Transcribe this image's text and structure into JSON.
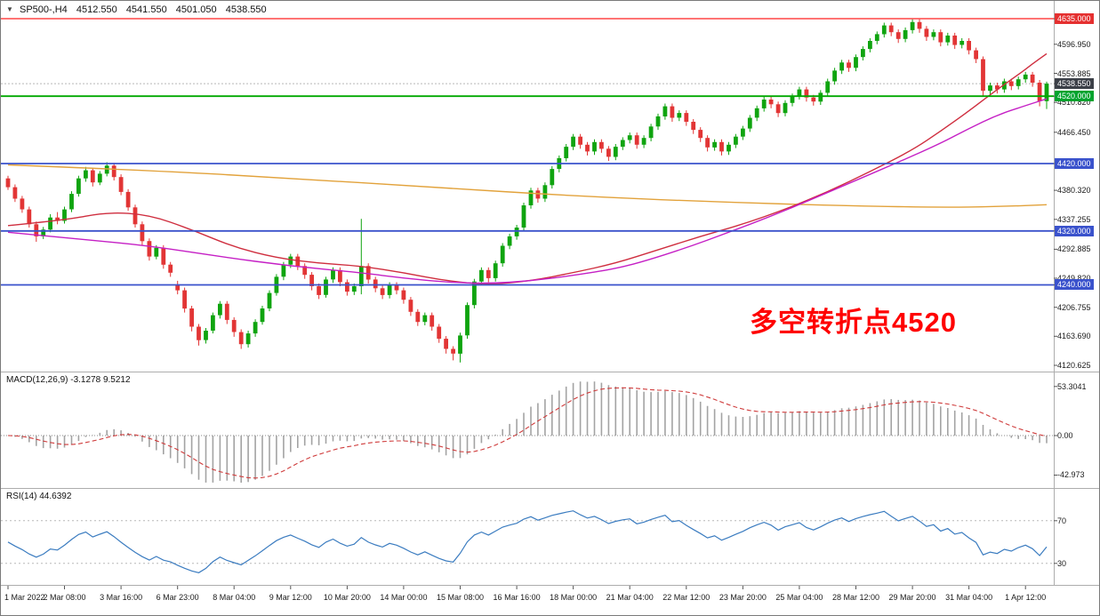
{
  "window": {
    "marker": "▼",
    "symbol": "SP500-,H4",
    "open": "4512.550",
    "high": "4541.550",
    "low": "4501.050",
    "close": "4538.550"
  },
  "annotation": {
    "text": "多空转折点4520",
    "color": "#ff0000"
  },
  "chart_data": {
    "type": "candlestick",
    "title": "SP500-,H4",
    "timeframe": "H4",
    "ylim": [
      4120.625,
      4635.0
    ],
    "label_every": 8,
    "time_labels": [
      "1 Mar 2022",
      "2 Mar 08:00",
      "3 Mar 16:00",
      "6 Mar 23:00",
      "8 Mar 04:00",
      "9 Mar 12:00",
      "10 Mar 20:00",
      "14 Mar 00:00",
      "15 Mar 08:00",
      "16 Mar 16:00",
      "18 Mar 00:00",
      "21 Mar 04:00",
      "22 Mar 12:00",
      "23 Mar 20:00",
      "25 Mar 04:00",
      "28 Mar 12:00",
      "29 Mar 20:00",
      "31 Mar 04:00",
      "1 Apr 12:00"
    ],
    "candle_colors": {
      "up": "#0fa40f",
      "down": "#e23535"
    },
    "ohlc": [
      [
        4398,
        4402,
        4381,
        4385
      ],
      [
        4385,
        4389,
        4363,
        4368
      ],
      [
        4368,
        4372,
        4347,
        4352
      ],
      [
        4352,
        4356,
        4325,
        4330
      ],
      [
        4330,
        4334,
        4304,
        4312
      ],
      [
        4312,
        4326,
        4308,
        4322
      ],
      [
        4322,
        4345,
        4318,
        4340
      ],
      [
        4340,
        4348,
        4330,
        4335
      ],
      [
        4335,
        4356,
        4331,
        4352
      ],
      [
        4352,
        4379,
        4348,
        4375
      ],
      [
        4375,
        4402,
        4371,
        4398
      ],
      [
        4398,
        4415,
        4393,
        4410
      ],
      [
        4410,
        4414,
        4386,
        4392
      ],
      [
        4392,
        4409,
        4388,
        4405
      ],
      [
        4405,
        4422,
        4401,
        4417
      ],
      [
        4417,
        4421,
        4395,
        4400
      ],
      [
        4400,
        4404,
        4373,
        4378
      ],
      [
        4378,
        4382,
        4350,
        4355
      ],
      [
        4355,
        4359,
        4325,
        4330
      ],
      [
        4330,
        4334,
        4299,
        4305
      ],
      [
        4305,
        4309,
        4276,
        4282
      ],
      [
        4282,
        4299,
        4278,
        4295
      ],
      [
        4295,
        4299,
        4264,
        4270
      ],
      [
        4270,
        4274,
        4252,
        4258
      ],
      [
        4240,
        4246,
        4226,
        4232
      ],
      [
        4232,
        4236,
        4199,
        4205
      ],
      [
        4205,
        4209,
        4171,
        4178
      ],
      [
        4178,
        4182,
        4150,
        4158
      ],
      [
        4158,
        4176,
        4153,
        4172
      ],
      [
        4172,
        4199,
        4168,
        4195
      ],
      [
        4195,
        4216,
        4190,
        4212
      ],
      [
        4212,
        4216,
        4182,
        4188
      ],
      [
        4188,
        4192,
        4163,
        4170
      ],
      [
        4170,
        4174,
        4145,
        4152
      ],
      [
        4152,
        4172,
        4147,
        4168
      ],
      [
        4168,
        4189,
        4163,
        4185
      ],
      [
        4185,
        4209,
        4181,
        4205
      ],
      [
        4205,
        4232,
        4201,
        4228
      ],
      [
        4228,
        4256,
        4224,
        4252
      ],
      [
        4252,
        4274,
        4247,
        4270
      ],
      [
        4270,
        4286,
        4265,
        4282
      ],
      [
        4282,
        4286,
        4262,
        4268
      ],
      [
        4268,
        4272,
        4249,
        4255
      ],
      [
        4255,
        4259,
        4232,
        4238
      ],
      [
        4238,
        4242,
        4219,
        4225
      ],
      [
        4225,
        4252,
        4221,
        4248
      ],
      [
        4248,
        4266,
        4243,
        4262
      ],
      [
        4262,
        4266,
        4238,
        4244
      ],
      [
        4244,
        4248,
        4224,
        4230
      ],
      [
        4230,
        4242,
        4225,
        4238
      ],
      [
        4238,
        4338,
        4226,
        4268
      ],
      [
        4268,
        4272,
        4242,
        4248
      ],
      [
        4248,
        4252,
        4229,
        4235
      ],
      [
        4235,
        4239,
        4219,
        4225
      ],
      [
        4225,
        4244,
        4220,
        4240
      ],
      [
        4240,
        4244,
        4226,
        4232
      ],
      [
        4232,
        4236,
        4212,
        4218
      ],
      [
        4218,
        4222,
        4194,
        4200
      ],
      [
        4200,
        4204,
        4179,
        4185
      ],
      [
        4185,
        4199,
        4180,
        4195
      ],
      [
        4195,
        4199,
        4172,
        4178
      ],
      [
        4178,
        4182,
        4154,
        4160
      ],
      [
        4160,
        4164,
        4138,
        4145
      ],
      [
        4145,
        4149,
        4128,
        4138
      ],
      [
        4138,
        4169,
        4125,
        4165
      ],
      [
        4165,
        4214,
        4160,
        4210
      ],
      [
        4210,
        4249,
        4205,
        4245
      ],
      [
        4245,
        4266,
        4240,
        4262
      ],
      [
        4262,
        4266,
        4244,
        4250
      ],
      [
        4250,
        4276,
        4245,
        4272
      ],
      [
        4272,
        4302,
        4267,
        4298
      ],
      [
        4298,
        4316,
        4293,
        4312
      ],
      [
        4312,
        4329,
        4307,
        4325
      ],
      [
        4325,
        4362,
        4320,
        4358
      ],
      [
        4358,
        4384,
        4353,
        4380
      ],
      [
        4380,
        4384,
        4362,
        4368
      ],
      [
        4368,
        4392,
        4363,
        4388
      ],
      [
        4388,
        4416,
        4383,
        4412
      ],
      [
        4412,
        4432,
        4407,
        4428
      ],
      [
        4428,
        4449,
        4423,
        4445
      ],
      [
        4445,
        4464,
        4440,
        4460
      ],
      [
        4460,
        4464,
        4442,
        4448
      ],
      [
        4448,
        4452,
        4432,
        4438
      ],
      [
        4438,
        4456,
        4433,
        4452
      ],
      [
        4452,
        4456,
        4436,
        4442
      ],
      [
        4442,
        4446,
        4424,
        4430
      ],
      [
        4430,
        4449,
        4425,
        4445
      ],
      [
        4445,
        4459,
        4440,
        4455
      ],
      [
        4455,
        4466,
        4450,
        4462
      ],
      [
        4462,
        4466,
        4442,
        4448
      ],
      [
        4448,
        4462,
        4443,
        4458
      ],
      [
        4458,
        4479,
        4453,
        4475
      ],
      [
        4475,
        4494,
        4470,
        4490
      ],
      [
        4490,
        4509,
        4485,
        4505
      ],
      [
        4505,
        4509,
        4482,
        4488
      ],
      [
        4488,
        4499,
        4483,
        4495
      ],
      [
        4495,
        4499,
        4476,
        4482
      ],
      [
        4482,
        4486,
        4464,
        4470
      ],
      [
        4470,
        4474,
        4452,
        4458
      ],
      [
        4458,
        4462,
        4438,
        4444
      ],
      [
        4444,
        4456,
        4439,
        4452
      ],
      [
        4452,
        4456,
        4432,
        4438
      ],
      [
        4438,
        4452,
        4433,
        4448
      ],
      [
        4448,
        4464,
        4443,
        4460
      ],
      [
        4460,
        4476,
        4455,
        4472
      ],
      [
        4472,
        4492,
        4467,
        4488
      ],
      [
        4488,
        4506,
        4483,
        4502
      ],
      [
        4502,
        4519,
        4497,
        4515
      ],
      [
        4515,
        4519,
        4502,
        4508
      ],
      [
        4508,
        4512,
        4489,
        4495
      ],
      [
        4495,
        4514,
        4490,
        4510
      ],
      [
        4510,
        4524,
        4505,
        4520
      ],
      [
        4520,
        4534,
        4515,
        4530
      ],
      [
        4530,
        4534,
        4512,
        4518
      ],
      [
        4518,
        4522,
        4506,
        4512
      ],
      [
        4512,
        4529,
        4507,
        4525
      ],
      [
        4525,
        4546,
        4520,
        4542
      ],
      [
        4542,
        4562,
        4537,
        4558
      ],
      [
        4558,
        4574,
        4553,
        4570
      ],
      [
        4570,
        4574,
        4556,
        4562
      ],
      [
        4562,
        4582,
        4557,
        4578
      ],
      [
        4578,
        4594,
        4573,
        4590
      ],
      [
        4590,
        4606,
        4585,
        4602
      ],
      [
        4602,
        4616,
        4597,
        4612
      ],
      [
        4612,
        4629,
        4607,
        4625
      ],
      [
        4625,
        4629,
        4609,
        4615
      ],
      [
        4615,
        4619,
        4599,
        4605
      ],
      [
        4605,
        4622,
        4600,
        4618
      ],
      [
        4618,
        4634,
        4613,
        4630
      ],
      [
        4630,
        4634,
        4614,
        4620
      ],
      [
        4620,
        4624,
        4602,
        4608
      ],
      [
        4608,
        4619,
        4603,
        4615
      ],
      [
        4615,
        4619,
        4594,
        4600
      ],
      [
        4600,
        4614,
        4595,
        4610
      ],
      [
        4610,
        4614,
        4590,
        4596
      ],
      [
        4596,
        4606,
        4591,
        4602
      ],
      [
        4602,
        4606,
        4582,
        4588
      ],
      [
        4588,
        4592,
        4569,
        4575
      ],
      [
        4575,
        4579,
        4520,
        4528
      ],
      [
        4528,
        4540,
        4523,
        4536
      ],
      [
        4536,
        4540,
        4524,
        4530
      ],
      [
        4530,
        4546,
        4525,
        4542
      ],
      [
        4542,
        4546,
        4529,
        4535
      ],
      [
        4535,
        4549,
        4530,
        4545
      ],
      [
        4545,
        4556,
        4540,
        4552
      ],
      [
        4552,
        4556,
        4534,
        4540
      ],
      [
        4540,
        4544,
        4505,
        4512.55
      ],
      [
        4512.55,
        4541.55,
        4501.05,
        4538.55
      ]
    ],
    "overlays": [
      {
        "name": "ma-long",
        "color": "#e2a23b",
        "points": [
          [
            0,
            4418
          ],
          [
            20,
            4410
          ],
          [
            40,
            4398
          ],
          [
            60,
            4385
          ],
          [
            80,
            4372
          ],
          [
            100,
            4363
          ],
          [
            120,
            4357
          ],
          [
            132,
            4355
          ],
          [
            140,
            4356
          ],
          [
            147,
            4359
          ]
        ]
      },
      {
        "name": "ma-mid",
        "color": "#cf2e3f",
        "points": [
          [
            0,
            4328
          ],
          [
            8,
            4336
          ],
          [
            14,
            4348
          ],
          [
            20,
            4344
          ],
          [
            26,
            4322
          ],
          [
            32,
            4296
          ],
          [
            38,
            4280
          ],
          [
            44,
            4272
          ],
          [
            50,
            4268
          ],
          [
            56,
            4258
          ],
          [
            62,
            4246
          ],
          [
            68,
            4240
          ],
          [
            74,
            4246
          ],
          [
            80,
            4258
          ],
          [
            86,
            4272
          ],
          [
            92,
            4292
          ],
          [
            98,
            4312
          ],
          [
            104,
            4330
          ],
          [
            110,
            4352
          ],
          [
            116,
            4378
          ],
          [
            122,
            4408
          ],
          [
            128,
            4440
          ],
          [
            132,
            4468
          ],
          [
            136,
            4498
          ],
          [
            140,
            4530
          ],
          [
            143,
            4552
          ],
          [
            145,
            4568
          ],
          [
            147,
            4583
          ]
        ]
      },
      {
        "name": "ma-slow",
        "color": "#c520c5",
        "points": [
          [
            0,
            4318
          ],
          [
            10,
            4308
          ],
          [
            20,
            4298
          ],
          [
            30,
            4282
          ],
          [
            40,
            4268
          ],
          [
            50,
            4258
          ],
          [
            56,
            4250
          ],
          [
            62,
            4244
          ],
          [
            68,
            4242
          ],
          [
            74,
            4246
          ],
          [
            80,
            4254
          ],
          [
            86,
            4264
          ],
          [
            90,
            4275
          ],
          [
            96,
            4295
          ],
          [
            102,
            4318
          ],
          [
            108,
            4342
          ],
          [
            114,
            4368
          ],
          [
            120,
            4395
          ],
          [
            126,
            4422
          ],
          [
            132,
            4450
          ],
          [
            136,
            4472
          ],
          [
            140,
            4492
          ],
          [
            144,
            4506
          ],
          [
            147,
            4516
          ]
        ]
      }
    ],
    "hlines": [
      {
        "price": 4635.0,
        "color": "#ff2020",
        "width": 1.3
      },
      {
        "price": 4520.0,
        "color": "#00a800",
        "width": 1.8
      },
      {
        "price": 4420.0,
        "color": "#3a52cc",
        "width": 1.8
      },
      {
        "price": 4320.0,
        "color": "#3a52cc",
        "width": 1.8
      },
      {
        "price": 4240.0,
        "color": "#3a52cc",
        "width": 1.8
      }
    ],
    "current_price": 4538.55,
    "current_price_line_color": "#b8b8b8",
    "axis_ticks": [
      "4596.950",
      "4553.885",
      "4510.820",
      "4466.450",
      "4380.320",
      "4337.255",
      "4292.885",
      "4249.820",
      "4206.755",
      "4163.690",
      "4120.625"
    ],
    "axis_badges": [
      {
        "text": "4635.000",
        "bg": "#e53030"
      },
      {
        "text": "4538.550",
        "bg": "#3c4048"
      },
      {
        "text": "4520.000",
        "bg": "#00a32e"
      },
      {
        "text": "4420.000",
        "bg": "#3a52cc"
      },
      {
        "text": "4320.000",
        "bg": "#3a52cc"
      },
      {
        "text": "4240.000",
        "bg": "#3a52cc"
      }
    ],
    "macd": {
      "label": "MACD(12,26,9) -3.1278 9.5212",
      "fast": 12,
      "slow": 26,
      "signal": 9,
      "axis_labels": [
        "53.3041",
        "0.00",
        "-42.973"
      ],
      "histogram_color": "#a3a3a3",
      "signal_color": "#cf3b3b"
    },
    "rsi": {
      "label": "RSI(14) 44.6392",
      "period": 14,
      "levels": [
        70,
        30
      ],
      "axis_labels": [
        "70",
        "30"
      ],
      "line_color": "#3b7cc0",
      "level_color": "#b8b8b8"
    }
  }
}
